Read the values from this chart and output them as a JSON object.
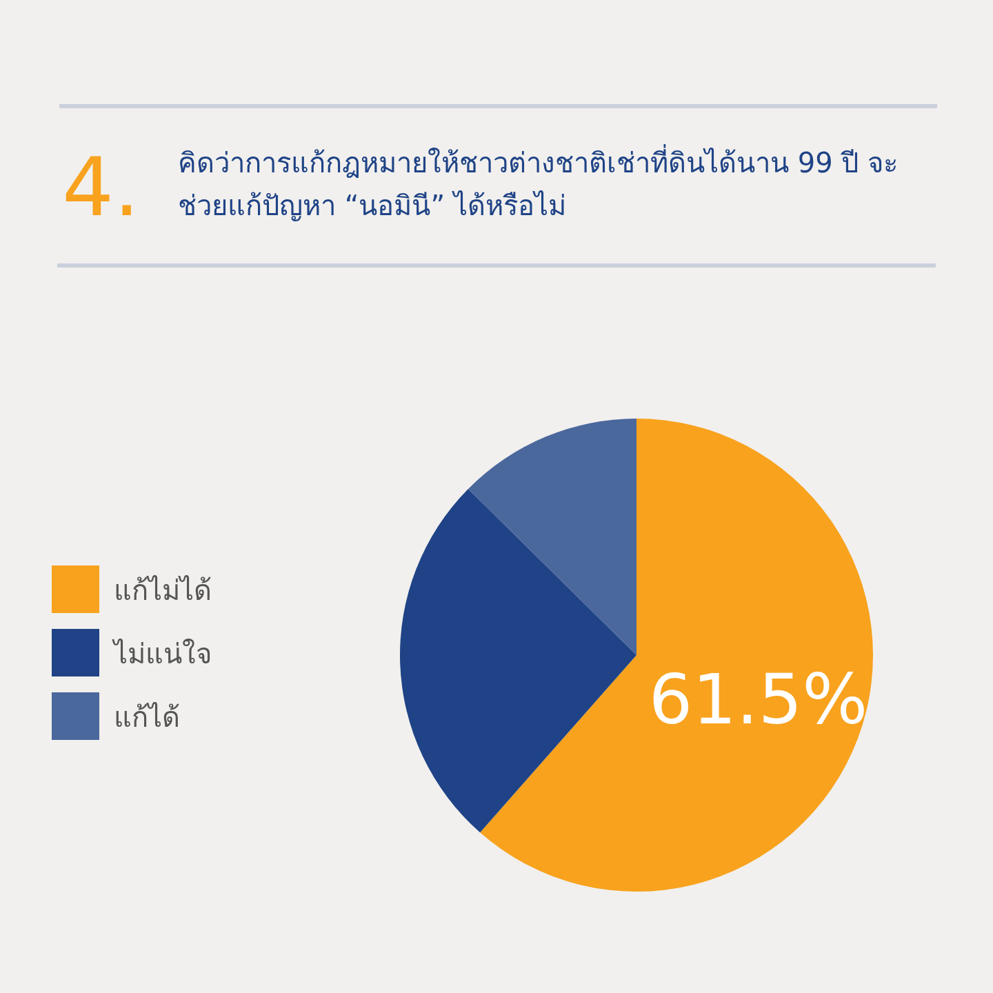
{
  "chart_data": {
    "type": "pie",
    "title": "คิดว่าการแก้กฎหมายให้ชาวต่างชาติเช่าที่ดินได้นาน 99 ปี จะช่วยแก้ปัญหา “นอมินี” ได้หรือไม่",
    "annotations": [
      "4."
    ],
    "categories": [
      "แก้ไม่ได้",
      "ไม่แน่ใจ",
      "แก้ได้"
    ],
    "values": [
      61.5,
      25.9,
      12.6
    ],
    "colors": [
      "#f8a21e",
      "#1f4386",
      "#4b689d"
    ],
    "value_labels": [
      "61.5%",
      null,
      null
    ],
    "legend": "left"
  }
}
